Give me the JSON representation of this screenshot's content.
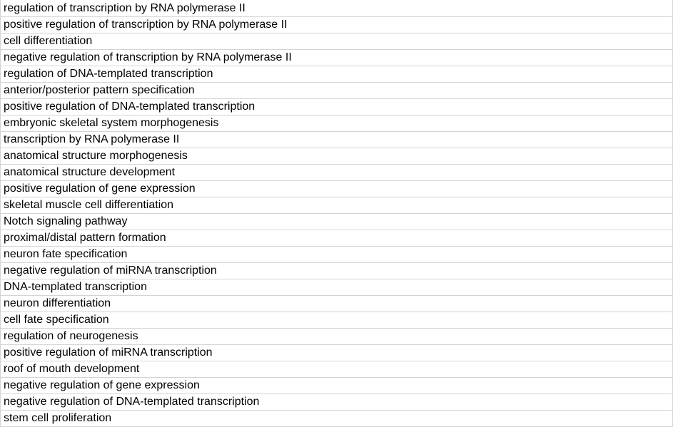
{
  "rows": [
    "regulation of transcription by RNA polymerase II",
    "positive regulation of transcription by RNA polymerase II",
    "cell differentiation",
    "negative regulation of transcription by RNA polymerase II",
    "regulation of DNA-templated transcription",
    "anterior/posterior pattern specification",
    "positive regulation of DNA-templated transcription",
    "embryonic skeletal system morphogenesis",
    "transcription by RNA polymerase II",
    "anatomical structure morphogenesis",
    "anatomical structure development",
    "positive regulation of gene expression",
    "skeletal muscle cell differentiation",
    "Notch signaling pathway",
    "proximal/distal pattern formation",
    "neuron fate specification",
    "negative regulation of miRNA transcription",
    "DNA-templated transcription",
    "neuron differentiation",
    "cell fate specification",
    "regulation of neurogenesis",
    "positive regulation of miRNA transcription",
    "roof of mouth development",
    "negative regulation of gene expression",
    "negative regulation of DNA-templated transcription",
    "stem cell proliferation"
  ]
}
